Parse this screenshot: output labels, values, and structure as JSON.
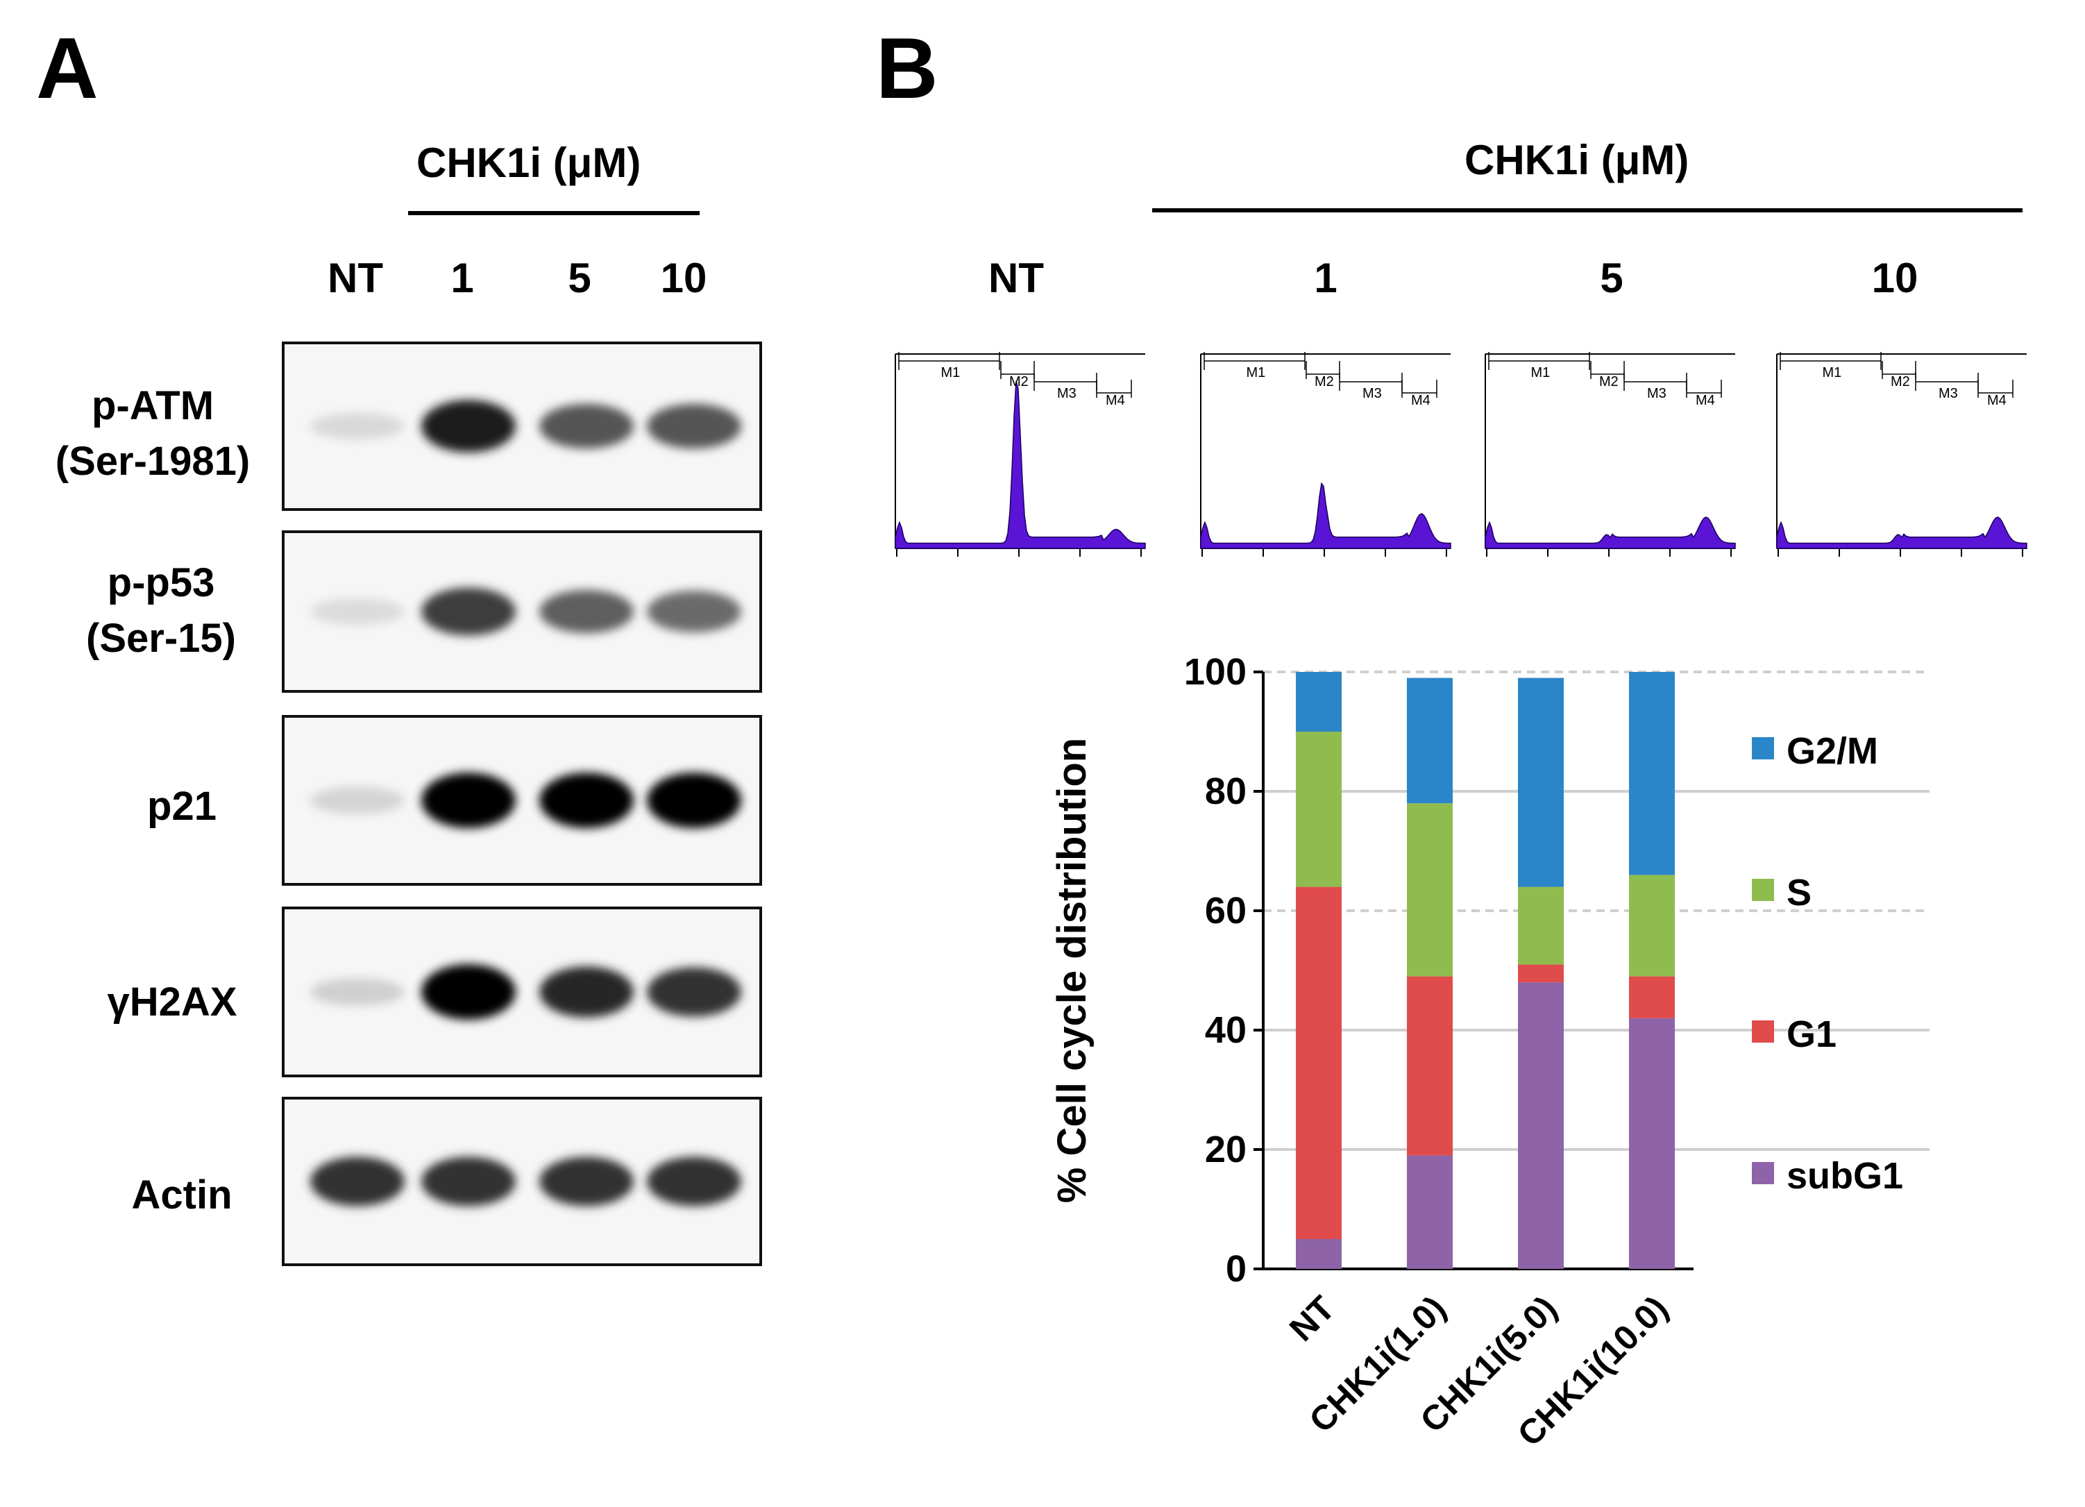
{
  "panel_a": {
    "letter": "A",
    "header": "CHK1i (μM)",
    "lanes": [
      "NT",
      "1",
      "5",
      "10"
    ],
    "rows": [
      {
        "label_line1": "p-ATM",
        "label_line2": "(Ser-1981)",
        "band_intensity": [
          0.06,
          0.9,
          0.65,
          0.65
        ]
      },
      {
        "label_line1": "p-p53",
        "label_line2": "(Ser-15)",
        "band_intensity": [
          0.05,
          0.75,
          0.6,
          0.55
        ]
      },
      {
        "label_line1": "p21",
        "label_line2": "",
        "band_intensity": [
          0.08,
          1.0,
          1.0,
          1.0
        ]
      },
      {
        "label_line1": "γH2AX",
        "label_line2": "",
        "band_intensity": [
          0.1,
          1.0,
          0.85,
          0.8
        ]
      },
      {
        "label_line1": "Actin",
        "label_line2": "",
        "band_intensity": [
          0.8,
          0.8,
          0.8,
          0.8
        ]
      }
    ]
  },
  "panel_b": {
    "letter": "B",
    "header": "CHK1i (μM)",
    "hist_labels": [
      "NT",
      "1",
      "5",
      "10"
    ],
    "gates": [
      "M1",
      "M2",
      "M3",
      "M4"
    ],
    "histograms": [
      {
        "g1_peak": 0.95,
        "g2_peak": 0.08
      },
      {
        "g1_peak": 0.35,
        "g2_peak": 0.17
      },
      {
        "g1_peak": 0.05,
        "g2_peak": 0.15
      },
      {
        "g1_peak": 0.05,
        "g2_peak": 0.15
      }
    ]
  },
  "chart_data": {
    "type": "bar",
    "stacked": true,
    "categories": [
      "NT",
      "CHK1i(1.0)",
      "CHK1i(5.0)",
      "CHK1i(10.0)"
    ],
    "series": [
      {
        "name": "subG1",
        "color": "#8e63a8",
        "values": [
          5,
          19,
          48,
          42
        ]
      },
      {
        "name": "G1",
        "color": "#e04c4c",
        "values": [
          59,
          30,
          3,
          7
        ]
      },
      {
        "name": "S",
        "color": "#8fbc4e",
        "values": [
          26,
          29,
          13,
          17
        ]
      },
      {
        "name": "G2/M",
        "color": "#2a86c8",
        "values": [
          10,
          21,
          35,
          34
        ]
      }
    ],
    "legend_order": [
      "G2/M",
      "S",
      "G1",
      "subG1"
    ],
    "ylabel": "% Cell cycle distribution",
    "ylim": [
      0,
      100
    ],
    "yticks": [
      "0",
      "20",
      "40",
      "60",
      "80",
      "100"
    ],
    "grid": true,
    "legend_position": "right"
  }
}
